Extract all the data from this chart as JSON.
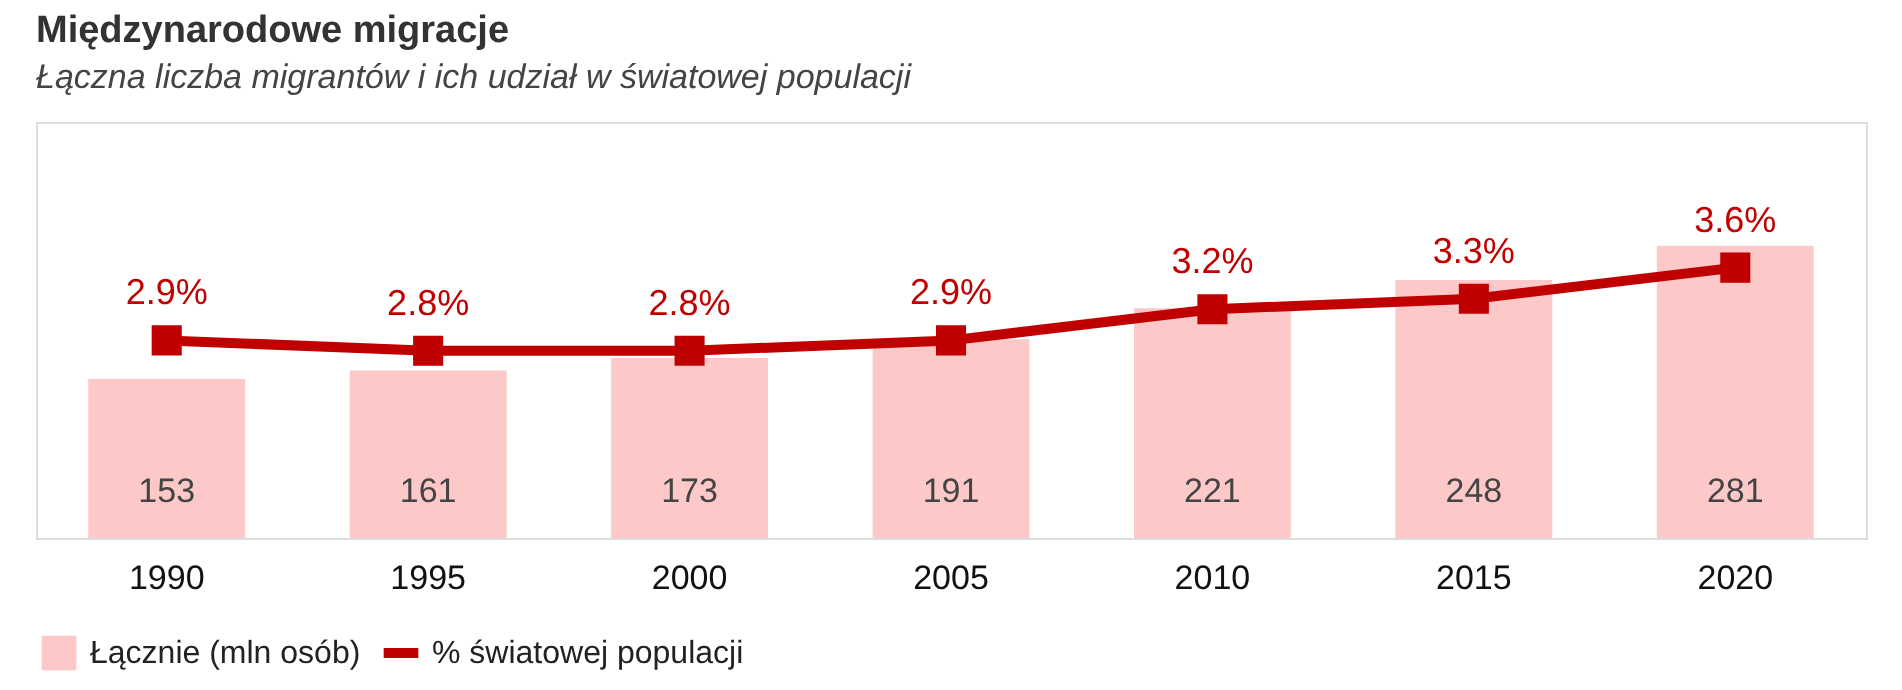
{
  "chart_data": {
    "type": "bar",
    "title": "Międzynarodowe migracje",
    "subtitle": "Łączna liczba migrantów i ich udział w światowej populacji",
    "categories": [
      "1990",
      "1995",
      "2000",
      "2005",
      "2010",
      "2015",
      "2020"
    ],
    "series": [
      {
        "name": "Łącznie (mln osób)",
        "color": "#fcc8c8",
        "values": [
          153,
          161,
          173,
          191,
          221,
          248,
          281
        ],
        "data_labels": true
      },
      {
        "name": "% światowej populacji",
        "type": "line",
        "axis": "y2",
        "color": "#c00000",
        "values": [
          2.9,
          2.8,
          2.8,
          2.9,
          3.2,
          3.3,
          3.6
        ],
        "value_labels": [
          "2.9%",
          "2.8%",
          "2.8%",
          "2.9%",
          "3.2%",
          "3.3%",
          "3.6%"
        ]
      }
    ],
    "ylim": [
      0,
      400
    ],
    "y2lim": [
      1.0,
      5.0
    ],
    "tick_labels": "x",
    "grid": false,
    "legend": "bottom",
    "marker": "square",
    "line_style": "solid"
  }
}
